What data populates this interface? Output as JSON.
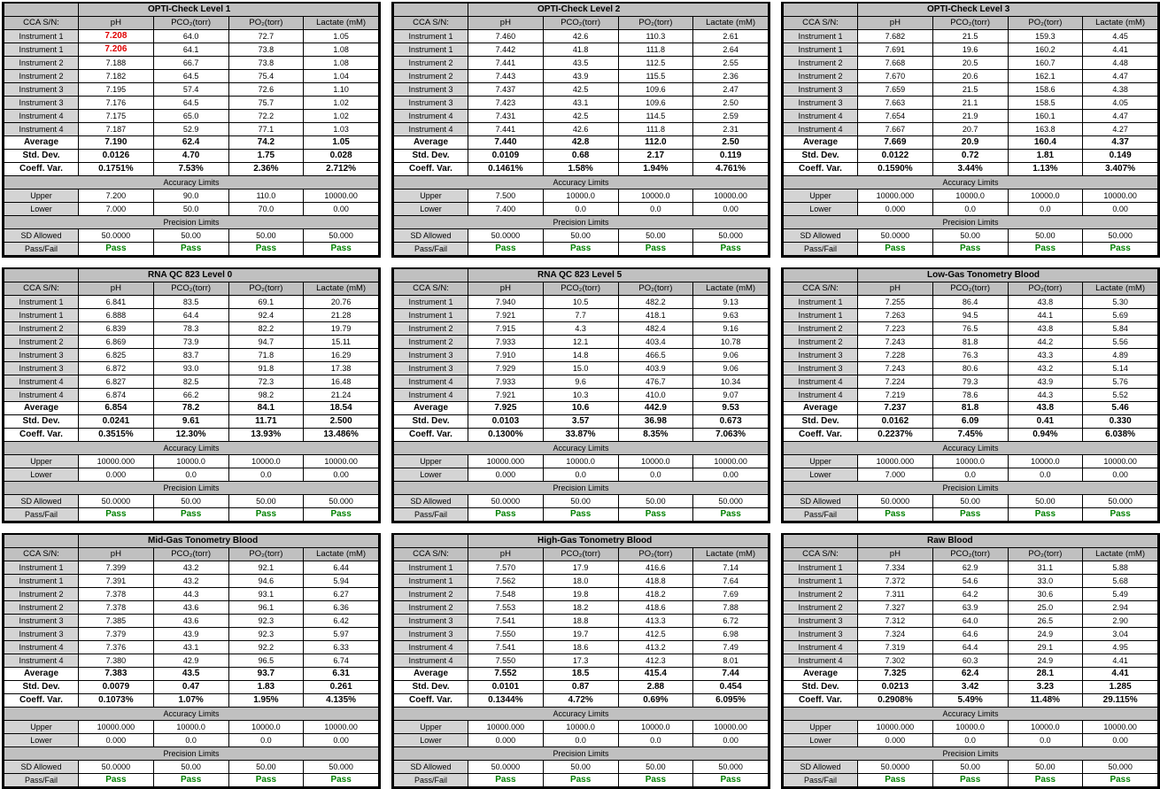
{
  "labels": {
    "sn": "CCA S/N:",
    "ph": "pH",
    "pco2": "PCO₂(torr)",
    "po2": "PO₂(torr)",
    "lactate": "Lactate (mM)",
    "average": "Average",
    "std": "Std. Dev.",
    "cv": "Coeff. Var.",
    "accuracy": "Accuracy Limits",
    "upper": "Upper",
    "lower": "Lower",
    "precision": "Precision Limits",
    "sd_allowed": "SD Allowed",
    "passfail": "Pass/Fail"
  },
  "colors": {
    "pass": "#008000",
    "fail": "#e00000",
    "header_bg": "#c0c0c0"
  },
  "panels": [
    {
      "title": "OPTI-Check Level 1",
      "rows": [
        {
          "inst": "Instrument 1",
          "v": [
            "7.208",
            "64.0",
            "72.7",
            "1.05"
          ],
          "flag": 0
        },
        {
          "inst": "Instrument 1",
          "v": [
            "7.206",
            "64.1",
            "73.8",
            "1.08"
          ],
          "flag": 0
        },
        {
          "inst": "Instrument 2",
          "v": [
            "7.188",
            "66.7",
            "73.8",
            "1.08"
          ]
        },
        {
          "inst": "Instrument 2",
          "v": [
            "7.182",
            "64.5",
            "75.4",
            "1.04"
          ]
        },
        {
          "inst": "Instrument 3",
          "v": [
            "7.195",
            "57.4",
            "72.6",
            "1.10"
          ]
        },
        {
          "inst": "Instrument 3",
          "v": [
            "7.176",
            "64.5",
            "75.7",
            "1.02"
          ]
        },
        {
          "inst": "Instrument 4",
          "v": [
            "7.175",
            "65.0",
            "72.2",
            "1.02"
          ]
        },
        {
          "inst": "Instrument 4",
          "v": [
            "7.187",
            "52.9",
            "77.1",
            "1.03"
          ]
        }
      ],
      "average": [
        "7.190",
        "62.4",
        "74.2",
        "1.05"
      ],
      "std": [
        "0.0126",
        "4.70",
        "1.75",
        "0.028"
      ],
      "cv": [
        "0.1751%",
        "7.53%",
        "2.36%",
        "2.712%"
      ],
      "upper": [
        "7.200",
        "90.0",
        "110.0",
        "10000.00"
      ],
      "lower": [
        "7.000",
        "50.0",
        "70.0",
        "0.00"
      ],
      "sd_allowed": [
        "50.0000",
        "50.00",
        "50.00",
        "50.000"
      ],
      "passfail": [
        "Pass",
        "Pass",
        "Pass",
        "Pass"
      ]
    },
    {
      "title": "OPTI-Check Level 2",
      "rows": [
        {
          "inst": "Instrument 1",
          "v": [
            "7.460",
            "42.6",
            "110.3",
            "2.61"
          ]
        },
        {
          "inst": "Instrument 1",
          "v": [
            "7.442",
            "41.8",
            "111.8",
            "2.64"
          ]
        },
        {
          "inst": "Instrument 2",
          "v": [
            "7.441",
            "43.5",
            "112.5",
            "2.55"
          ]
        },
        {
          "inst": "Instrument 2",
          "v": [
            "7.443",
            "43.9",
            "115.5",
            "2.36"
          ]
        },
        {
          "inst": "Instrument 3",
          "v": [
            "7.437",
            "42.5",
            "109.6",
            "2.47"
          ]
        },
        {
          "inst": "Instrument 3",
          "v": [
            "7.423",
            "43.1",
            "109.6",
            "2.50"
          ]
        },
        {
          "inst": "Instrument 4",
          "v": [
            "7.431",
            "42.5",
            "114.5",
            "2.59"
          ]
        },
        {
          "inst": "Instrument 4",
          "v": [
            "7.441",
            "42.6",
            "111.8",
            "2.31"
          ]
        }
      ],
      "average": [
        "7.440",
        "42.8",
        "112.0",
        "2.50"
      ],
      "std": [
        "0.0109",
        "0.68",
        "2.17",
        "0.119"
      ],
      "cv": [
        "0.1461%",
        "1.58%",
        "1.94%",
        "4.761%"
      ],
      "upper": [
        "7.500",
        "10000.0",
        "10000.0",
        "10000.00"
      ],
      "lower": [
        "7.400",
        "0.0",
        "0.0",
        "0.00"
      ],
      "sd_allowed": [
        "50.0000",
        "50.00",
        "50.00",
        "50.000"
      ],
      "passfail": [
        "Pass",
        "Pass",
        "Pass",
        "Pass"
      ]
    },
    {
      "title": "OPTI-Check Level 3",
      "rows": [
        {
          "inst": "Instrument 1",
          "v": [
            "7.682",
            "21.5",
            "159.3",
            "4.45"
          ]
        },
        {
          "inst": "Instrument 1",
          "v": [
            "7.691",
            "19.6",
            "160.2",
            "4.41"
          ]
        },
        {
          "inst": "Instrument 2",
          "v": [
            "7.668",
            "20.5",
            "160.7",
            "4.48"
          ]
        },
        {
          "inst": "Instrument 2",
          "v": [
            "7.670",
            "20.6",
            "162.1",
            "4.47"
          ]
        },
        {
          "inst": "Instrument 3",
          "v": [
            "7.659",
            "21.5",
            "158.6",
            "4.38"
          ]
        },
        {
          "inst": "Instrument 3",
          "v": [
            "7.663",
            "21.1",
            "158.5",
            "4.05"
          ]
        },
        {
          "inst": "Instrument 4",
          "v": [
            "7.654",
            "21.9",
            "160.1",
            "4.47"
          ]
        },
        {
          "inst": "Instrument 4",
          "v": [
            "7.667",
            "20.7",
            "163.8",
            "4.27"
          ]
        }
      ],
      "average": [
        "7.669",
        "20.9",
        "160.4",
        "4.37"
      ],
      "std": [
        "0.0122",
        "0.72",
        "1.81",
        "0.149"
      ],
      "cv": [
        "0.1590%",
        "3.44%",
        "1.13%",
        "3.407%"
      ],
      "upper": [
        "10000.000",
        "10000.0",
        "10000.0",
        "10000.00"
      ],
      "lower": [
        "0.000",
        "0.0",
        "0.0",
        "0.00"
      ],
      "sd_allowed": [
        "50.0000",
        "50.00",
        "50.00",
        "50.000"
      ],
      "passfail": [
        "Pass",
        "Pass",
        "Pass",
        "Pass"
      ]
    },
    {
      "title": "RNA QC 823 Level 0",
      "rows": [
        {
          "inst": "Instrument 1",
          "v": [
            "6.841",
            "83.5",
            "69.1",
            "20.76"
          ]
        },
        {
          "inst": "Instrument 1",
          "v": [
            "6.888",
            "64.4",
            "92.4",
            "21.28"
          ]
        },
        {
          "inst": "Instrument 2",
          "v": [
            "6.839",
            "78.3",
            "82.2",
            "19.79"
          ]
        },
        {
          "inst": "Instrument 2",
          "v": [
            "6.869",
            "73.9",
            "94.7",
            "15.11"
          ]
        },
        {
          "inst": "Instrument 3",
          "v": [
            "6.825",
            "83.7",
            "71.8",
            "16.29"
          ]
        },
        {
          "inst": "Instrument 3",
          "v": [
            "6.872",
            "93.0",
            "91.8",
            "17.38"
          ]
        },
        {
          "inst": "Instrument 4",
          "v": [
            "6.827",
            "82.5",
            "72.3",
            "16.48"
          ]
        },
        {
          "inst": "Instrument 4",
          "v": [
            "6.874",
            "66.2",
            "98.2",
            "21.24"
          ]
        }
      ],
      "average": [
        "6.854",
        "78.2",
        "84.1",
        "18.54"
      ],
      "std": [
        "0.0241",
        "9.61",
        "11.71",
        "2.500"
      ],
      "cv": [
        "0.3515%",
        "12.30%",
        "13.93%",
        "13.486%"
      ],
      "upper": [
        "10000.000",
        "10000.0",
        "10000.0",
        "10000.00"
      ],
      "lower": [
        "0.000",
        "0.0",
        "0.0",
        "0.00"
      ],
      "sd_allowed": [
        "50.0000",
        "50.00",
        "50.00",
        "50.000"
      ],
      "passfail": [
        "Pass",
        "Pass",
        "Pass",
        "Pass"
      ]
    },
    {
      "title": "RNA QC 823 Level 5",
      "rows": [
        {
          "inst": "Instrument 1",
          "v": [
            "7.940",
            "10.5",
            "482.2",
            "9.13"
          ]
        },
        {
          "inst": "Instrument 1",
          "v": [
            "7.921",
            "7.7",
            "418.1",
            "9.63"
          ]
        },
        {
          "inst": "Instrument 2",
          "v": [
            "7.915",
            "4.3",
            "482.4",
            "9.16"
          ]
        },
        {
          "inst": "Instrument 2",
          "v": [
            "7.933",
            "12.1",
            "403.4",
            "10.78"
          ]
        },
        {
          "inst": "Instrument 3",
          "v": [
            "7.910",
            "14.8",
            "466.5",
            "9.06"
          ]
        },
        {
          "inst": "Instrument 3",
          "v": [
            "7.929",
            "15.0",
            "403.9",
            "9.06"
          ]
        },
        {
          "inst": "Instrument 4",
          "v": [
            "7.933",
            "9.6",
            "476.7",
            "10.34"
          ]
        },
        {
          "inst": "Instrument 4",
          "v": [
            "7.921",
            "10.3",
            "410.0",
            "9.07"
          ]
        }
      ],
      "average": [
        "7.925",
        "10.6",
        "442.9",
        "9.53"
      ],
      "std": [
        "0.0103",
        "3.57",
        "36.98",
        "0.673"
      ],
      "cv": [
        "0.1300%",
        "33.87%",
        "8.35%",
        "7.063%"
      ],
      "upper": [
        "10000.000",
        "10000.0",
        "10000.0",
        "10000.00"
      ],
      "lower": [
        "0.000",
        "0.0",
        "0.0",
        "0.00"
      ],
      "sd_allowed": [
        "50.0000",
        "50.00",
        "50.00",
        "50.000"
      ],
      "passfail": [
        "Pass",
        "Pass",
        "Pass",
        "Pass"
      ]
    },
    {
      "title": "Low-Gas Tonometry Blood",
      "rows": [
        {
          "inst": "Instrument 1",
          "v": [
            "7.255",
            "86.4",
            "43.8",
            "5.30"
          ]
        },
        {
          "inst": "Instrument 1",
          "v": [
            "7.263",
            "94.5",
            "44.1",
            "5.69"
          ]
        },
        {
          "inst": "Instrument 2",
          "v": [
            "7.223",
            "76.5",
            "43.8",
            "5.84"
          ]
        },
        {
          "inst": "Instrument 2",
          "v": [
            "7.243",
            "81.8",
            "44.2",
            "5.56"
          ]
        },
        {
          "inst": "Instrument 3",
          "v": [
            "7.228",
            "76.3",
            "43.3",
            "4.89"
          ]
        },
        {
          "inst": "Instrument 3",
          "v": [
            "7.243",
            "80.6",
            "43.2",
            "5.14"
          ]
        },
        {
          "inst": "Instrument 4",
          "v": [
            "7.224",
            "79.3",
            "43.9",
            "5.76"
          ]
        },
        {
          "inst": "Instrument 4",
          "v": [
            "7.219",
            "78.6",
            "44.3",
            "5.52"
          ]
        }
      ],
      "average": [
        "7.237",
        "81.8",
        "43.8",
        "5.46"
      ],
      "std": [
        "0.0162",
        "6.09",
        "0.41",
        "0.330"
      ],
      "cv": [
        "0.2237%",
        "7.45%",
        "0.94%",
        "6.038%"
      ],
      "upper": [
        "10000.000",
        "10000.0",
        "10000.0",
        "10000.00"
      ],
      "lower": [
        "7.000",
        "0.0",
        "0.0",
        "0.00"
      ],
      "sd_allowed": [
        "50.0000",
        "50.00",
        "50.00",
        "50.000"
      ],
      "passfail": [
        "Pass",
        "Pass",
        "Pass",
        "Pass"
      ]
    },
    {
      "title": "Mid-Gas Tonometry Blood",
      "rows": [
        {
          "inst": "Instrument 1",
          "v": [
            "7.399",
            "43.2",
            "92.1",
            "6.44"
          ]
        },
        {
          "inst": "Instrument 1",
          "v": [
            "7.391",
            "43.2",
            "94.6",
            "5.94"
          ]
        },
        {
          "inst": "Instrument 2",
          "v": [
            "7.378",
            "44.3",
            "93.1",
            "6.27"
          ]
        },
        {
          "inst": "Instrument 2",
          "v": [
            "7.378",
            "43.6",
            "96.1",
            "6.36"
          ]
        },
        {
          "inst": "Instrument 3",
          "v": [
            "7.385",
            "43.6",
            "92.3",
            "6.42"
          ]
        },
        {
          "inst": "Instrument 3",
          "v": [
            "7.379",
            "43.9",
            "92.3",
            "5.97"
          ]
        },
        {
          "inst": "Instrument 4",
          "v": [
            "7.376",
            "43.1",
            "92.2",
            "6.33"
          ]
        },
        {
          "inst": "Instrument 4",
          "v": [
            "7.380",
            "42.9",
            "96.5",
            "6.74"
          ]
        }
      ],
      "average": [
        "7.383",
        "43.5",
        "93.7",
        "6.31"
      ],
      "std": [
        "0.0079",
        "0.47",
        "1.83",
        "0.261"
      ],
      "cv": [
        "0.1073%",
        "1.07%",
        "1.95%",
        "4.135%"
      ],
      "upper": [
        "10000.000",
        "10000.0",
        "10000.0",
        "10000.00"
      ],
      "lower": [
        "0.000",
        "0.0",
        "0.0",
        "0.00"
      ],
      "sd_allowed": [
        "50.0000",
        "50.00",
        "50.00",
        "50.000"
      ],
      "passfail": [
        "Pass",
        "Pass",
        "Pass",
        "Pass"
      ]
    },
    {
      "title": "High-Gas Tonometry Blood",
      "rows": [
        {
          "inst": "Instrument 1",
          "v": [
            "7.570",
            "17.9",
            "416.6",
            "7.14"
          ]
        },
        {
          "inst": "Instrument 1",
          "v": [
            "7.562",
            "18.0",
            "418.8",
            "7.64"
          ]
        },
        {
          "inst": "Instrument 2",
          "v": [
            "7.548",
            "19.8",
            "418.2",
            "7.69"
          ]
        },
        {
          "inst": "Instrument 2",
          "v": [
            "7.553",
            "18.2",
            "418.6",
            "7.88"
          ]
        },
        {
          "inst": "Instrument 3",
          "v": [
            "7.541",
            "18.8",
            "413.3",
            "6.72"
          ]
        },
        {
          "inst": "Instrument 3",
          "v": [
            "7.550",
            "19.7",
            "412.5",
            "6.98"
          ]
        },
        {
          "inst": "Instrument 4",
          "v": [
            "7.541",
            "18.6",
            "413.2",
            "7.49"
          ]
        },
        {
          "inst": "Instrument 4",
          "v": [
            "7.550",
            "17.3",
            "412.3",
            "8.01"
          ]
        }
      ],
      "average": [
        "7.552",
        "18.5",
        "415.4",
        "7.44"
      ],
      "std": [
        "0.0101",
        "0.87",
        "2.88",
        "0.454"
      ],
      "cv": [
        "0.1344%",
        "4.72%",
        "0.69%",
        "6.095%"
      ],
      "upper": [
        "10000.000",
        "10000.0",
        "10000.0",
        "10000.00"
      ],
      "lower": [
        "0.000",
        "0.0",
        "0.0",
        "0.00"
      ],
      "sd_allowed": [
        "50.0000",
        "50.00",
        "50.00",
        "50.000"
      ],
      "passfail": [
        "Pass",
        "Pass",
        "Pass",
        "Pass"
      ]
    },
    {
      "title": "Raw Blood",
      "rows": [
        {
          "inst": "Instrument 1",
          "v": [
            "7.334",
            "62.9",
            "31.1",
            "5.88"
          ]
        },
        {
          "inst": "Instrument 1",
          "v": [
            "7.372",
            "54.6",
            "33.0",
            "5.68"
          ]
        },
        {
          "inst": "Instrument 2",
          "v": [
            "7.311",
            "64.2",
            "30.6",
            "5.49"
          ]
        },
        {
          "inst": "Instrument 2",
          "v": [
            "7.327",
            "63.9",
            "25.0",
            "2.94"
          ]
        },
        {
          "inst": "Instrument 3",
          "v": [
            "7.312",
            "64.0",
            "26.5",
            "2.90"
          ]
        },
        {
          "inst": "Instrument 3",
          "v": [
            "7.324",
            "64.6",
            "24.9",
            "3.04"
          ]
        },
        {
          "inst": "Instrument 4",
          "v": [
            "7.319",
            "64.4",
            "29.1",
            "4.95"
          ]
        },
        {
          "inst": "Instrument 4",
          "v": [
            "7.302",
            "60.3",
            "24.9",
            "4.41"
          ]
        }
      ],
      "average": [
        "7.325",
        "62.4",
        "28.1",
        "4.41"
      ],
      "std": [
        "0.0213",
        "3.42",
        "3.23",
        "1.285"
      ],
      "cv": [
        "0.2908%",
        "5.49%",
        "11.48%",
        "29.115%"
      ],
      "upper": [
        "10000.000",
        "10000.0",
        "10000.0",
        "10000.00"
      ],
      "lower": [
        "0.000",
        "0.0",
        "0.0",
        "0.00"
      ],
      "sd_allowed": [
        "50.0000",
        "50.00",
        "50.00",
        "50.000"
      ],
      "passfail": [
        "Pass",
        "Pass",
        "Pass",
        "Pass"
      ]
    }
  ]
}
